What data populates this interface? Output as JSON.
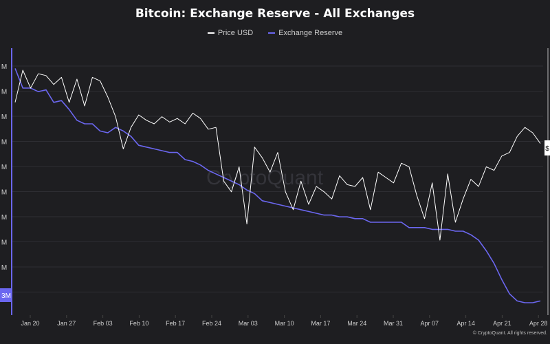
{
  "chart_data": {
    "type": "line",
    "title": "Bitcoin: Exchange Reserve - All Exchanges",
    "watermark": "CryptoQuant",
    "footer": "© CryptoQuant. All rights reserved.",
    "x_tick_labels": [
      "Jan 20",
      "Jan 27",
      "Feb 03",
      "Feb 10",
      "Feb 17",
      "Feb 24",
      "Mar 03",
      "Mar 10",
      "Mar 17",
      "Mar 24",
      "Mar 31",
      "Apr 07",
      "Apr 14",
      "Apr 21",
      "Apr 28"
    ],
    "y_left_tick_labels": [
      "M",
      "M",
      "M",
      "M",
      "M",
      "M",
      "M",
      "M",
      "M",
      "M"
    ],
    "y_left_current_label": "3M",
    "y_right_current_label": "$",
    "colors": {
      "price": "#ffffff",
      "reserve": "#6b67f0",
      "background": "#1e1e21"
    },
    "series": [
      {
        "name": "Price USD",
        "values": [
          0.72,
          0.9,
          0.8,
          0.88,
          0.87,
          0.82,
          0.86,
          0.72,
          0.85,
          0.7,
          0.86,
          0.84,
          0.75,
          0.64,
          0.46,
          0.58,
          0.65,
          0.62,
          0.6,
          0.64,
          0.61,
          0.63,
          0.6,
          0.66,
          0.63,
          0.57,
          0.58,
          0.28,
          0.22,
          0.36,
          0.04,
          0.47,
          0.41,
          0.33,
          0.44,
          0.22,
          0.12,
          0.28,
          0.15,
          0.25,
          0.22,
          0.18,
          0.31,
          0.26,
          0.25,
          0.3,
          0.12,
          0.33,
          0.3,
          0.27,
          0.38,
          0.36,
          0.2,
          0.07,
          0.27,
          -0.05,
          0.32,
          0.05,
          0.18,
          0.29,
          0.25,
          0.36,
          0.34,
          0.42,
          0.44,
          0.53,
          0.58,
          0.55,
          0.49
        ]
      },
      {
        "name": "Exchange Reserve",
        "values": [
          0.91,
          0.8,
          0.8,
          0.78,
          0.79,
          0.72,
          0.73,
          0.68,
          0.62,
          0.6,
          0.6,
          0.56,
          0.55,
          0.58,
          0.56,
          0.53,
          0.48,
          0.47,
          0.46,
          0.45,
          0.44,
          0.44,
          0.4,
          0.39,
          0.37,
          0.34,
          0.32,
          0.3,
          0.28,
          0.26,
          0.23,
          0.21,
          0.17,
          0.16,
          0.15,
          0.14,
          0.13,
          0.12,
          0.11,
          0.1,
          0.09,
          0.09,
          0.08,
          0.08,
          0.07,
          0.07,
          0.05,
          0.05,
          0.05,
          0.05,
          0.05,
          0.02,
          0.02,
          0.02,
          0.01,
          0.01,
          0.01,
          0.0,
          0.0,
          -0.02,
          -0.05,
          -0.11,
          -0.18,
          -0.27,
          -0.35,
          -0.39,
          -0.4,
          -0.4,
          -0.39
        ]
      }
    ]
  }
}
